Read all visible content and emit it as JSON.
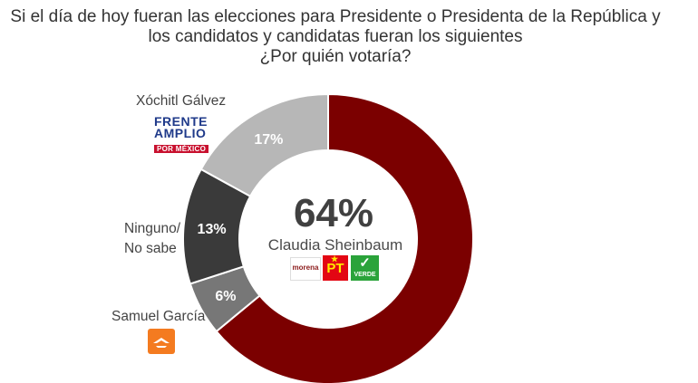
{
  "title": {
    "line1": "Si el día de hoy fueran las elecciones para Presidente o Presidenta de la República y",
    "line2": "los candidatos y candidatas fueran los siguientes",
    "line3": "¿Por quién votaría?"
  },
  "colors": {
    "sheinbaum": "#7b0000",
    "galvez": "#b7b7b7",
    "ninguno": "#3a3a3a",
    "garcia": "#777777"
  },
  "logos": {
    "frente": {
      "line1": "FRENTE",
      "line2": "AMPLIO",
      "line3": "POR MÉXICO"
    },
    "morena": "morena",
    "pt": "PT",
    "verde": "VERDE",
    "mc_icon": "movimiento-ciudadano-eagle-icon"
  },
  "chart_data": {
    "type": "pie",
    "donut": true,
    "categories": [
      "Claudia Sheinbaum",
      "Samuel García",
      "Ninguno/ No sabe",
      "Xóchitl Gálvez"
    ],
    "values": [
      64,
      6,
      13,
      17
    ],
    "data_labels": [
      "64%",
      "6%",
      "13%",
      "17%"
    ],
    "center_value": "64%",
    "center_label": "Claudia Sheinbaum",
    "side_labels": {
      "galvez": "Xóchitl Gálvez",
      "ninguno_line1": "Ninguno/",
      "ninguno_line2": "No sabe",
      "garcia": "Samuel García"
    }
  }
}
